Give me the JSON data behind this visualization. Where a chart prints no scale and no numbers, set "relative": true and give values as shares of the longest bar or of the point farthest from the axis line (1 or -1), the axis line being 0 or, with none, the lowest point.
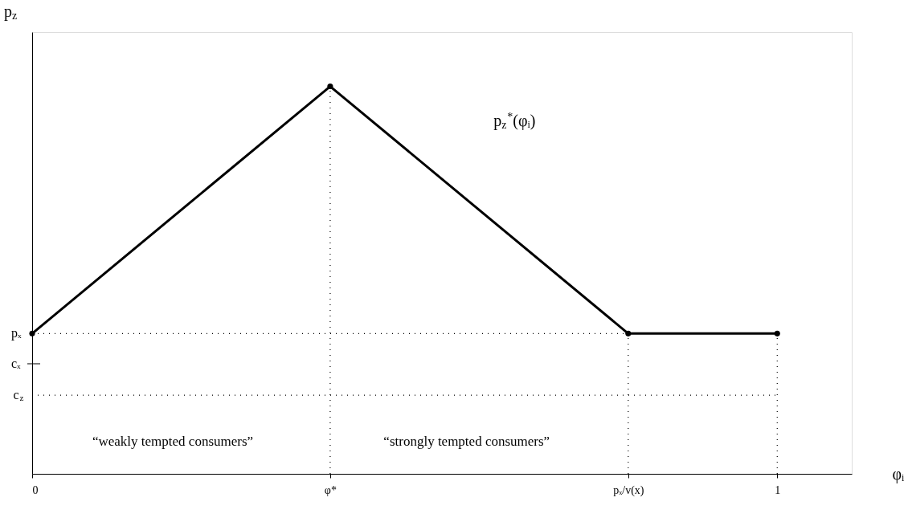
{
  "chart_data": {
    "type": "line",
    "relative": true,
    "xlabel": "φᵢ",
    "ylabel": "p$_{z}$",
    "x": [
      0,
      0.4,
      0.8,
      1.0
    ],
    "series": [
      {
        "color": "#000000",
        "values": [
          0.362,
          1,
          0.362,
          0.362
        ]
      }
    ],
    "marker": "circle",
    "line_style": "solid",
    "grid": false,
    "legend": false,
    "xlim": [
      0,
      1.1
    ],
    "xticks": [
      0,
      {
        "value": 0.4,
        "label": "φ*"
      },
      {
        "value": 0.8,
        "label": "pₓ/v(x)"
      },
      1
    ],
    "ref_lines": [
      {
        "axis": "y",
        "value": 0.362,
        "label": "pₓ",
        "line_style": "dotted",
        "color": "#000000"
      },
      {
        "axis": "y",
        "value": 0.284,
        "label": "cₓ",
        "line_style": "solid",
        "color": "#000000"
      },
      {
        "axis": "y",
        "value": 0.203,
        "label": "c$_{z}$",
        "line_style": "dotted",
        "color": "#000000"
      },
      {
        "axis": "x",
        "value": 0.4,
        "line_style": "dotted",
        "color": "#000000"
      },
      {
        "axis": "x",
        "value": 0.8,
        "line_style": "dotted",
        "color": "#000000"
      },
      {
        "axis": "x",
        "value": 1,
        "line_style": "dotted",
        "color": "#000000"
      }
    ],
    "annotations": [
      "p$_{z}$$^{*}$(φᵢ)",
      "“weakly tempted consumers”",
      "“strongly tempted consumers”"
    ]
  }
}
